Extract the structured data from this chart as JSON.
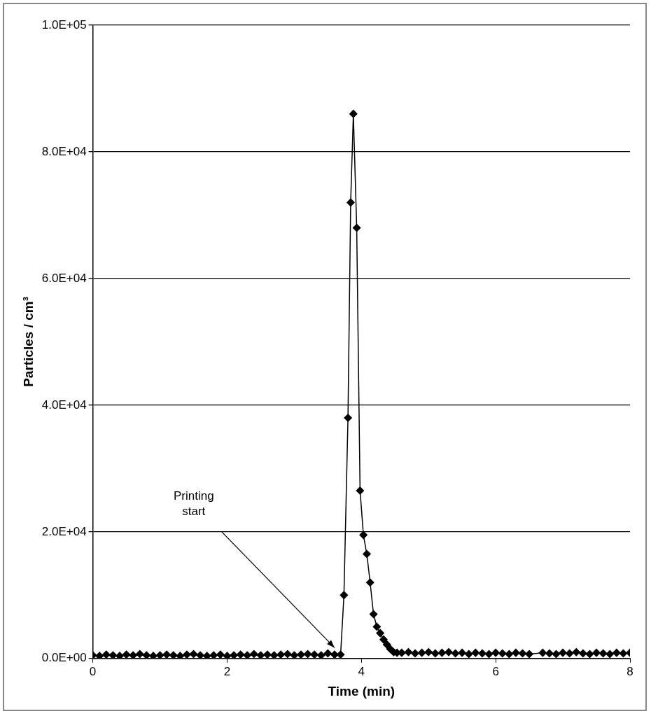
{
  "chart_data": {
    "type": "line",
    "xlabel": "Time (min)",
    "ylabel": "Particles / cm³",
    "x": [
      0,
      0.1,
      0.2,
      0.3,
      0.4,
      0.5,
      0.6,
      0.7,
      0.8,
      0.9,
      1,
      1.1,
      1.2,
      1.3,
      1.4,
      1.5,
      1.6,
      1.7,
      1.8,
      1.9,
      2,
      2.1,
      2.2,
      2.3,
      2.4,
      2.5,
      2.6,
      2.7,
      2.8,
      2.9,
      3,
      3.1,
      3.2,
      3.3,
      3.4,
      3.5,
      3.6,
      3.69,
      3.74,
      3.8,
      3.84,
      3.88,
      3.93,
      3.98,
      4.03,
      4.08,
      4.13,
      4.18,
      4.23,
      4.28,
      4.33,
      4.38,
      4.43,
      4.48,
      4.53,
      4.6,
      4.7,
      4.8,
      4.9,
      5,
      5.1,
      5.2,
      5.3,
      5.4,
      5.5,
      5.6,
      5.7,
      5.8,
      5.9,
      6,
      6.1,
      6.2,
      6.3,
      6.4,
      6.5,
      6.7,
      6.8,
      6.9,
      7,
      7.1,
      7.2,
      7.3,
      7.4,
      7.5,
      7.6,
      7.7,
      7.8,
      7.9,
      8
    ],
    "series": [
      {
        "color": "#000000",
        "values": [
          500,
          400,
          600,
          500,
          400,
          600,
          500,
          700,
          500,
          400,
          500,
          600,
          500,
          400,
          600,
          700,
          500,
          400,
          500,
          600,
          400,
          500,
          600,
          500,
          700,
          500,
          600,
          500,
          600,
          700,
          500,
          600,
          700,
          600,
          500,
          800,
          600,
          600,
          10000,
          38000,
          72000,
          86000,
          68000,
          26500,
          19500,
          16500,
          12000,
          7000,
          5000,
          4000,
          3000,
          2200,
          1500,
          1000,
          900,
          900,
          1000,
          800,
          900,
          1000,
          800,
          900,
          1000,
          800,
          900,
          700,
          900,
          800,
          700,
          900,
          800,
          700,
          900,
          800,
          700,
          900,
          800,
          700,
          900,
          800,
          1000,
          800,
          700,
          900,
          800,
          700,
          900,
          800,
          900
        ]
      }
    ],
    "xlim": [
      0,
      8
    ],
    "xticks": [
      0,
      2,
      4,
      6,
      8
    ],
    "ylim": [
      0,
      100000
    ],
    "yticks": [
      {
        "value": 0,
        "label": "0.0E+00"
      },
      {
        "value": 20000,
        "label": "2.0E+04"
      },
      {
        "value": 40000,
        "label": "4.0E+04"
      },
      {
        "value": 60000,
        "label": "6.0E+04"
      },
      {
        "value": 80000,
        "label": "8.0E+04"
      },
      {
        "value": 100000,
        "label": "1.0E+05"
      }
    ],
    "grid": "y",
    "legend": false,
    "marker": "diamond",
    "line_style": "solid",
    "annotations": [
      "Printing start"
    ]
  }
}
